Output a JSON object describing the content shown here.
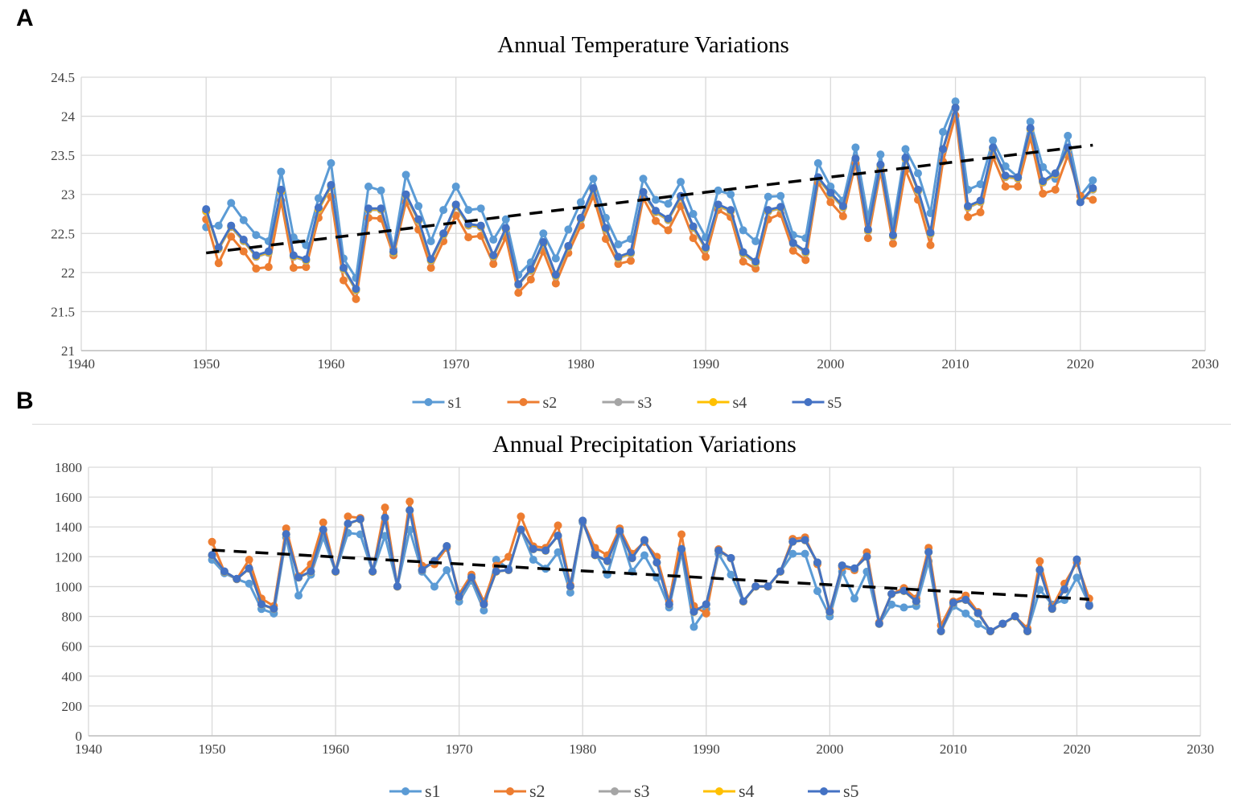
{
  "panels": {
    "a_label": "A",
    "b_label": "B"
  },
  "chart_data": [
    {
      "type": "line",
      "title": "Annual Temperature Variations",
      "xlabel": "",
      "ylabel": "",
      "xlim": [
        1940,
        2030
      ],
      "ylim": [
        21,
        24.5
      ],
      "xticks": [
        1940,
        1950,
        1960,
        1970,
        1980,
        1990,
        2000,
        2010,
        2020,
        2030
      ],
      "yticks": [
        21,
        21.5,
        22,
        22.5,
        23,
        23.5,
        24,
        24.5
      ],
      "ytick_labels": [
        "21",
        "21.5",
        "22",
        "22.5",
        "23",
        "23.5",
        "24",
        "24.5"
      ],
      "grid": true,
      "legend": "bottom",
      "x": [
        1950,
        1951,
        1952,
        1953,
        1954,
        1955,
        1956,
        1957,
        1958,
        1959,
        1960,
        1961,
        1962,
        1963,
        1964,
        1965,
        1966,
        1967,
        1968,
        1969,
        1970,
        1971,
        1972,
        1973,
        1974,
        1975,
        1976,
        1977,
        1978,
        1979,
        1980,
        1981,
        1982,
        1983,
        1984,
        1985,
        1986,
        1987,
        1988,
        1989,
        1990,
        1991,
        1992,
        1993,
        1994,
        1995,
        1996,
        1997,
        1998,
        1999,
        2000,
        2001,
        2002,
        2003,
        2004,
        2005,
        2006,
        2007,
        2008,
        2009,
        2010,
        2011,
        2012,
        2013,
        2014,
        2015,
        2016,
        2017,
        2018,
        2019,
        2020,
        2021
      ],
      "series": [
        {
          "name": "s1",
          "color": "#5b9bd5",
          "values": [
            22.58,
            22.6,
            22.89,
            22.67,
            22.48,
            22.4,
            23.29,
            22.45,
            22.35,
            22.95,
            23.4,
            22.18,
            21.93,
            23.1,
            23.05,
            22.3,
            23.25,
            22.85,
            22.4,
            22.8,
            23.1,
            22.8,
            22.82,
            22.42,
            22.68,
            21.97,
            22.13,
            22.5,
            22.18,
            22.55,
            22.9,
            23.2,
            22.7,
            22.36,
            22.43,
            23.2,
            22.93,
            22.88,
            23.16,
            22.75,
            22.45,
            23.05,
            23.0,
            22.54,
            22.4,
            22.97,
            22.98,
            22.48,
            22.44,
            23.4,
            23.1,
            22.92,
            23.6,
            22.7,
            23.51,
            22.6,
            23.58,
            23.27,
            22.76,
            23.8,
            24.19,
            23.06,
            23.13,
            23.69,
            23.36,
            23.22,
            23.93,
            23.35,
            23.2,
            23.75,
            22.98,
            23.18
          ]
        },
        {
          "name": "s2",
          "color": "#ed7d31",
          "values": [
            22.68,
            22.12,
            22.46,
            22.27,
            22.05,
            22.07,
            22.92,
            22.06,
            22.07,
            22.7,
            22.97,
            21.9,
            21.66,
            22.7,
            22.69,
            22.22,
            22.9,
            22.55,
            22.06,
            22.4,
            22.73,
            22.45,
            22.47,
            22.11,
            22.45,
            21.74,
            21.91,
            22.27,
            21.86,
            22.25,
            22.6,
            22.98,
            22.43,
            22.11,
            22.15,
            22.95,
            22.66,
            22.54,
            22.85,
            22.44,
            22.2,
            22.8,
            22.71,
            22.14,
            22.05,
            22.68,
            22.75,
            22.28,
            22.16,
            23.15,
            22.9,
            22.72,
            23.4,
            22.44,
            23.3,
            22.37,
            23.31,
            22.93,
            22.35,
            23.42,
            24.01,
            22.71,
            22.77,
            23.48,
            23.1,
            23.1,
            23.73,
            23.01,
            23.06,
            23.5,
            22.98,
            22.93
          ]
        },
        {
          "name": "s3",
          "color": "#a5a5a5",
          "values": [
            22.78,
            22.3,
            22.58,
            22.4,
            22.2,
            22.25,
            23.03,
            22.2,
            22.15,
            22.8,
            23.1,
            22.04,
            21.77,
            22.8,
            22.8,
            22.25,
            22.98,
            22.66,
            22.15,
            22.48,
            22.85,
            22.6,
            22.58,
            22.2,
            22.55,
            21.84,
            22.02,
            22.37,
            21.95,
            22.32,
            22.68,
            23.06,
            22.55,
            22.18,
            22.24,
            23.02,
            22.77,
            22.67,
            22.96,
            22.57,
            22.3,
            22.85,
            22.78,
            22.24,
            22.12,
            22.78,
            22.82,
            22.37,
            22.25,
            23.2,
            23.0,
            22.83,
            23.45,
            22.53,
            23.36,
            22.46,
            23.45,
            23.04,
            22.49,
            23.57,
            24.1,
            22.83,
            22.9,
            23.58,
            23.22,
            23.2,
            23.83,
            23.15,
            23.25,
            23.58,
            22.9,
            23.06
          ]
        },
        {
          "name": "s4",
          "color": "#ffc000",
          "values": [
            22.79,
            22.31,
            22.59,
            22.41,
            22.21,
            22.26,
            23.04,
            22.21,
            22.16,
            22.81,
            23.11,
            22.05,
            21.78,
            22.81,
            22.81,
            22.26,
            22.99,
            22.67,
            22.16,
            22.49,
            22.86,
            22.61,
            22.59,
            22.21,
            22.56,
            21.85,
            22.03,
            22.38,
            21.96,
            22.33,
            22.69,
            23.07,
            22.56,
            22.19,
            22.25,
            23.03,
            22.78,
            22.68,
            22.97,
            22.58,
            22.31,
            22.86,
            22.79,
            22.25,
            22.13,
            22.79,
            22.83,
            22.38,
            22.26,
            23.21,
            23.01,
            22.84,
            23.46,
            22.54,
            23.37,
            22.47,
            23.46,
            23.05,
            22.5,
            23.58,
            24.11,
            22.84,
            22.91,
            23.59,
            23.23,
            23.21,
            23.84,
            23.16,
            23.26,
            23.59,
            22.91,
            23.07
          ]
        },
        {
          "name": "s5",
          "color": "#4472c4",
          "values": [
            22.81,
            22.32,
            22.6,
            22.42,
            22.22,
            22.27,
            23.06,
            22.22,
            22.17,
            22.83,
            23.12,
            22.06,
            21.79,
            22.82,
            22.82,
            22.27,
            23.0,
            22.68,
            22.17,
            22.5,
            22.87,
            22.62,
            22.6,
            22.22,
            22.57,
            21.85,
            22.04,
            22.39,
            21.97,
            22.34,
            22.7,
            23.08,
            22.57,
            22.2,
            22.26,
            23.03,
            22.79,
            22.69,
            22.98,
            22.59,
            22.32,
            22.87,
            22.8,
            22.26,
            22.14,
            22.8,
            22.84,
            22.38,
            22.27,
            23.22,
            23.02,
            22.85,
            23.46,
            22.55,
            23.38,
            22.48,
            23.47,
            23.06,
            22.51,
            23.58,
            24.11,
            22.85,
            22.92,
            23.6,
            23.24,
            23.22,
            23.85,
            23.17,
            23.27,
            23.6,
            22.9,
            23.08
          ]
        }
      ],
      "trendline": {
        "style": "dashed",
        "color": "#000000",
        "x": [
          1950,
          2021
        ],
        "values": [
          22.25,
          23.63
        ]
      }
    },
    {
      "type": "line",
      "title": "Annual Precipitation Variations",
      "xlabel": "",
      "ylabel": "",
      "xlim": [
        1940,
        2030
      ],
      "ylim": [
        0,
        1800
      ],
      "xticks": [
        1940,
        1950,
        1960,
        1970,
        1980,
        1990,
        2000,
        2010,
        2020,
        2030
      ],
      "yticks": [
        0,
        200,
        400,
        600,
        800,
        1000,
        1200,
        1400,
        1600,
        1800
      ],
      "ytick_labels": [
        "0",
        "200",
        "400",
        "600",
        "800",
        "1000",
        "1200",
        "1400",
        "1600",
        "1800"
      ],
      "grid": true,
      "legend": "bottom",
      "x": [
        1950,
        1951,
        1952,
        1953,
        1954,
        1955,
        1956,
        1957,
        1958,
        1959,
        1960,
        1961,
        1962,
        1963,
        1964,
        1965,
        1966,
        1967,
        1968,
        1969,
        1970,
        1971,
        1972,
        1973,
        1974,
        1975,
        1976,
        1977,
        1978,
        1979,
        1980,
        1981,
        1982,
        1983,
        1984,
        1985,
        1986,
        1987,
        1988,
        1989,
        1990,
        1991,
        1992,
        1993,
        1994,
        1995,
        1996,
        1997,
        1998,
        1999,
        2000,
        2001,
        2002,
        2003,
        2004,
        2005,
        2006,
        2007,
        2008,
        2009,
        2010,
        2011,
        2012,
        2013,
        2014,
        2015,
        2016,
        2017,
        2018,
        2019,
        2020,
        2021
      ],
      "series": [
        {
          "name": "s1",
          "color": "#5b9bd5",
          "values": [
            1180,
            1090,
            1050,
            1020,
            850,
            820,
            1330,
            940,
            1080,
            1330,
            1100,
            1360,
            1350,
            1100,
            1340,
            1000,
            1380,
            1100,
            1000,
            1110,
            900,
            1040,
            840,
            1180,
            1120,
            1380,
            1180,
            1120,
            1230,
            960,
            1430,
            1230,
            1080,
            1360,
            1100,
            1210,
            1060,
            860,
            1230,
            730,
            850,
            1220,
            1080,
            900,
            1000,
            1000,
            1100,
            1220,
            1220,
            970,
            800,
            1100,
            920,
            1100,
            750,
            880,
            860,
            870,
            1170,
            700,
            870,
            820,
            750,
            700,
            750,
            800,
            700,
            980,
            880,
            910,
            1060,
            880
          ]
        },
        {
          "name": "s2",
          "color": "#ed7d31",
          "values": [
            1300,
            1100,
            1050,
            1180,
            920,
            870,
            1390,
            1070,
            1150,
            1430,
            1100,
            1470,
            1460,
            1100,
            1530,
            1000,
            1570,
            1140,
            1150,
            1260,
            950,
            1080,
            900,
            1140,
            1200,
            1470,
            1270,
            1260,
            1410,
            1010,
            1440,
            1260,
            1210,
            1390,
            1220,
            1300,
            1200,
            900,
            1350,
            870,
            820,
            1250,
            1190,
            900,
            1000,
            1000,
            1100,
            1320,
            1330,
            1150,
            840,
            1130,
            1110,
            1230,
            760,
            950,
            990,
            920,
            1260,
            740,
            900,
            940,
            830,
            700,
            750,
            800,
            720,
            1170,
            860,
            1020,
            1160,
            920
          ]
        },
        {
          "name": "s3",
          "color": "#a5a5a5",
          "values": [
            1210,
            1100,
            1050,
            1120,
            880,
            850,
            1350,
            1060,
            1100,
            1380,
            1100,
            1420,
            1450,
            1100,
            1460,
            1000,
            1510,
            1110,
            1170,
            1270,
            930,
            1060,
            880,
            1100,
            1110,
            1380,
            1250,
            1240,
            1340,
            1000,
            1440,
            1210,
            1170,
            1370,
            1190,
            1310,
            1160,
            880,
            1250,
            830,
            880,
            1240,
            1190,
            900,
            1000,
            1000,
            1100,
            1300,
            1310,
            1160,
            830,
            1140,
            1120,
            1200,
            750,
            950,
            970,
            900,
            1230,
            700,
            890,
            910,
            820,
            700,
            750,
            800,
            700,
            1110,
            850,
            980,
            1180,
            870
          ]
        },
        {
          "name": "s4",
          "color": "#ffc000",
          "values": [
            1211,
            1101,
            1051,
            1121,
            881,
            851,
            1351,
            1061,
            1101,
            1381,
            1101,
            1421,
            1451,
            1101,
            1461,
            1001,
            1511,
            1111,
            1171,
            1271,
            931,
            1061,
            881,
            1101,
            1111,
            1381,
            1251,
            1241,
            1341,
            1001,
            1441,
            1211,
            1171,
            1371,
            1191,
            1311,
            1161,
            881,
            1251,
            831,
            881,
            1241,
            1191,
            901,
            1001,
            1001,
            1101,
            1301,
            1311,
            1161,
            831,
            1141,
            1121,
            1201,
            751,
            951,
            971,
            901,
            1231,
            701,
            891,
            911,
            821,
            701,
            751,
            801,
            701,
            1111,
            851,
            981,
            1181,
            871
          ]
        },
        {
          "name": "s5",
          "color": "#4472c4",
          "values": [
            1212,
            1102,
            1052,
            1122,
            882,
            852,
            1352,
            1062,
            1102,
            1382,
            1102,
            1422,
            1452,
            1102,
            1462,
            1002,
            1512,
            1112,
            1172,
            1272,
            932,
            1062,
            882,
            1102,
            1112,
            1382,
            1252,
            1242,
            1342,
            1002,
            1442,
            1212,
            1172,
            1372,
            1192,
            1312,
            1162,
            882,
            1252,
            832,
            882,
            1242,
            1192,
            902,
            1002,
            1002,
            1102,
            1302,
            1312,
            1162,
            832,
            1142,
            1122,
            1202,
            752,
            952,
            972,
            902,
            1232,
            702,
            892,
            912,
            822,
            702,
            752,
            802,
            702,
            1112,
            852,
            982,
            1182,
            872
          ]
        }
      ],
      "trendline": {
        "style": "dashed",
        "color": "#000000",
        "x": [
          1950,
          2021
        ],
        "values": [
          1245,
          915
        ]
      }
    }
  ]
}
